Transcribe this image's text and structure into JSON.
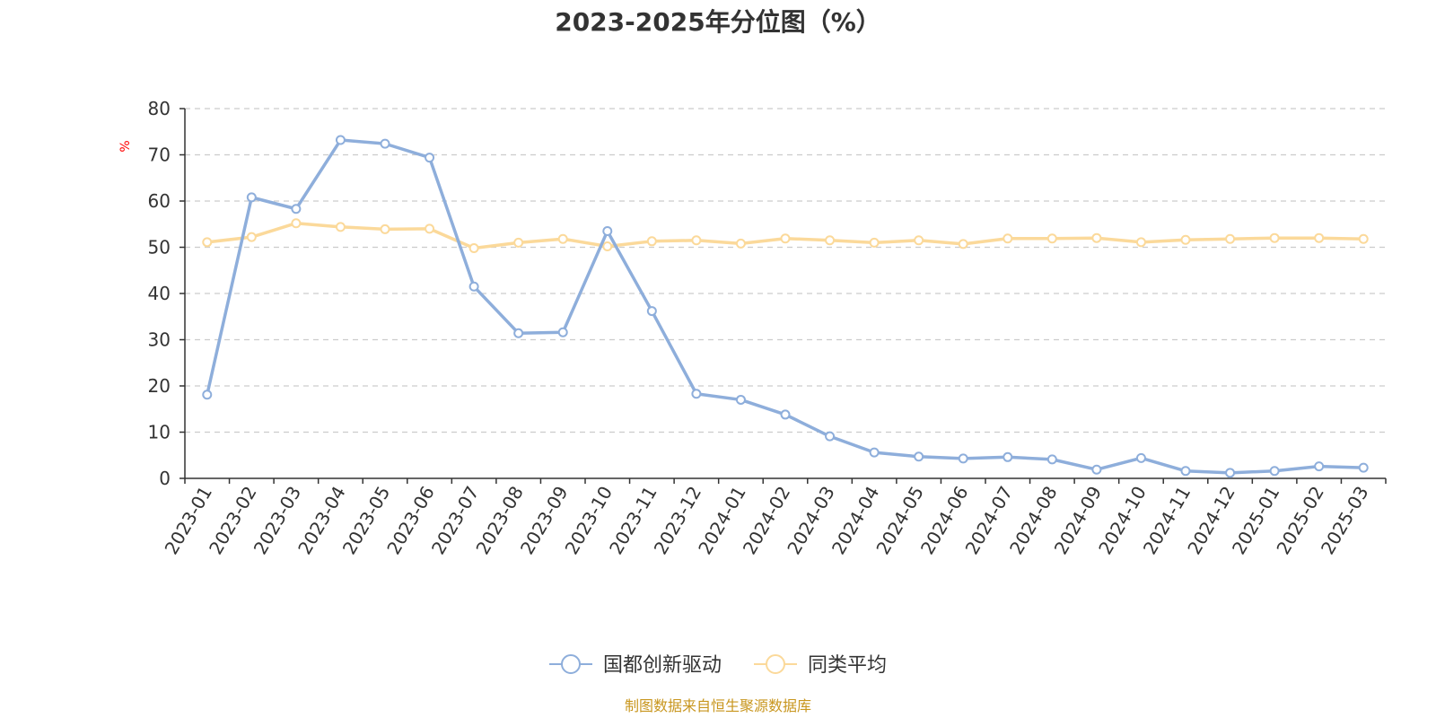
{
  "source_text": "制图数据来自恒生聚源数据库",
  "colors": {
    "series1": "#8eaedb",
    "series2": "#fbd99a",
    "ylabel": "#ff0000",
    "source": "#c8961e",
    "grid": "#cccccc",
    "axis": "#333333",
    "text": "#333333"
  },
  "chart_data": {
    "type": "line",
    "title": "2023-2025年分位图（%）",
    "xlabel": "",
    "ylabel": "%",
    "ylim": [
      0,
      80
    ],
    "yticks": [
      0,
      10,
      20,
      30,
      40,
      50,
      60,
      70,
      80
    ],
    "grid": true,
    "legend_position": "bottom-center",
    "categories": [
      "2023-01",
      "2023-02",
      "2023-03",
      "2023-04",
      "2023-05",
      "2023-06",
      "2023-07",
      "2023-08",
      "2023-09",
      "2023-10",
      "2023-11",
      "2023-12",
      "2024-01",
      "2024-02",
      "2024-03",
      "2024-04",
      "2024-05",
      "2024-06",
      "2024-07",
      "2024-08",
      "2024-09",
      "2024-10",
      "2024-11",
      "2024-12",
      "2025-01",
      "2025-02",
      "2025-03"
    ],
    "series": [
      {
        "name": "国都创新驱动",
        "values": [
          18.1,
          60.8,
          58.3,
          73.2,
          72.4,
          69.4,
          41.5,
          31.4,
          31.6,
          53.5,
          36.2,
          18.3,
          17.0,
          13.8,
          9.1,
          5.6,
          4.7,
          4.3,
          4.6,
          4.1,
          1.9,
          4.4,
          1.6,
          1.2,
          1.6,
          2.6,
          2.3
        ]
      },
      {
        "name": "同类平均",
        "values": [
          51.1,
          52.2,
          55.2,
          54.4,
          53.9,
          54.0,
          49.8,
          51.0,
          51.8,
          50.2,
          51.3,
          51.5,
          50.8,
          51.9,
          51.5,
          51.0,
          51.5,
          50.7,
          51.9,
          51.9,
          52.0,
          51.1,
          51.6,
          51.8,
          52.0,
          52.0,
          51.8
        ]
      }
    ]
  }
}
